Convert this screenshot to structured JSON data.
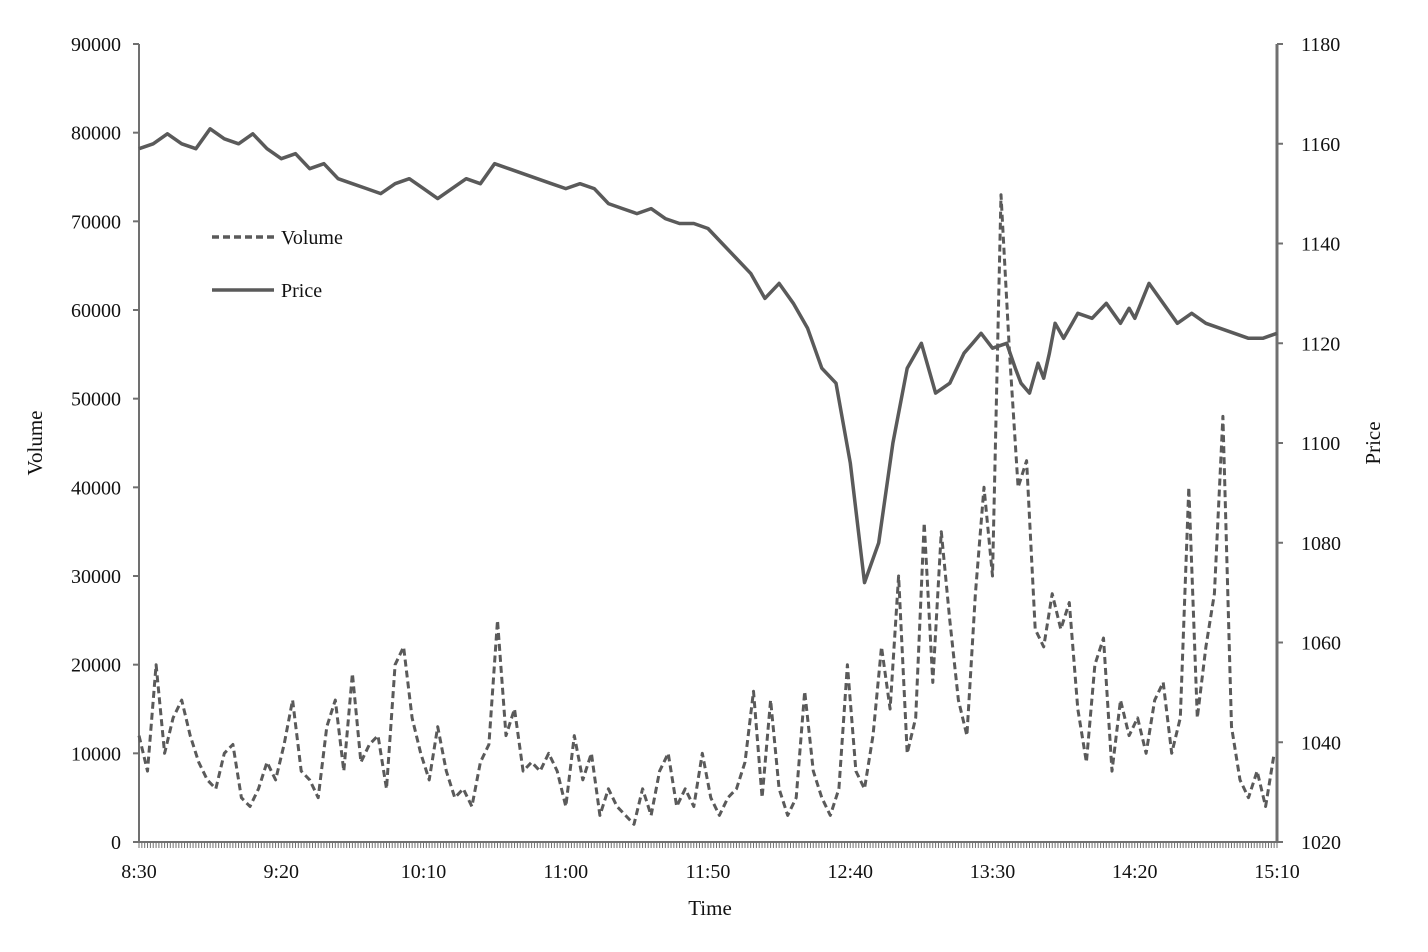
{
  "chart_data": {
    "type": "line",
    "xlabel": "Time",
    "ylabel_left": "Volume",
    "ylabel_right": "Price",
    "x_tick_labels": [
      "8:30",
      "9:20",
      "10:10",
      "11:00",
      "11:50",
      "12:40",
      "13:30",
      "14:20",
      "15:10"
    ],
    "x_range_minutes": [
      510,
      910
    ],
    "left_axis": {
      "range": [
        0,
        90000
      ],
      "ticks": [
        0,
        10000,
        20000,
        30000,
        40000,
        50000,
        60000,
        70000,
        80000,
        90000
      ]
    },
    "right_axis": {
      "range": [
        1020,
        1180
      ],
      "ticks": [
        1020,
        1040,
        1060,
        1080,
        1100,
        1120,
        1140,
        1160,
        1180
      ]
    },
    "legend": {
      "placement": "upper-left",
      "entries": [
        "Volume",
        "Price"
      ]
    },
    "colors": {
      "line": "#5a5a5a",
      "axis": "#707070"
    },
    "series": [
      {
        "name": "Price",
        "axis": "right",
        "style": "solid",
        "x_minutes": [
          510,
          515,
          520,
          525,
          530,
          535,
          540,
          545,
          550,
          555,
          560,
          565,
          570,
          575,
          580,
          585,
          590,
          595,
          600,
          605,
          610,
          615,
          620,
          625,
          630,
          635,
          640,
          645,
          650,
          655,
          660,
          665,
          670,
          675,
          680,
          685,
          690,
          695,
          700,
          705,
          710,
          715,
          720,
          725,
          730,
          735,
          740,
          745,
          750,
          755,
          760,
          765,
          770,
          775,
          780,
          785,
          790,
          795,
          800,
          803,
          806,
          810,
          815,
          818,
          820,
          823,
          826,
          828,
          830,
          832,
          835,
          838,
          840,
          845,
          850,
          855,
          858,
          860,
          865,
          870,
          875,
          880,
          885,
          890,
          895,
          900,
          905,
          910
        ],
        "values": [
          1159,
          1160,
          1162,
          1160,
          1159,
          1163,
          1161,
          1160,
          1162,
          1159,
          1157,
          1158,
          1155,
          1156,
          1153,
          1152,
          1151,
          1150,
          1152,
          1153,
          1151,
          1149,
          1151,
          1153,
          1152,
          1156,
          1155,
          1154,
          1153,
          1152,
          1151,
          1152,
          1151,
          1148,
          1147,
          1146,
          1147,
          1145,
          1144,
          1144,
          1143,
          1140,
          1137,
          1134,
          1129,
          1132,
          1128,
          1123,
          1115,
          1112,
          1096,
          1072,
          1080,
          1100,
          1115,
          1120,
          1110,
          1112,
          1118,
          1120,
          1122,
          1119,
          1120,
          1115,
          1112,
          1110,
          1116,
          1113,
          1118,
          1124,
          1121,
          1124,
          1126,
          1125,
          1128,
          1124,
          1127,
          1125,
          1132,
          1128,
          1124,
          1126,
          1124,
          1123,
          1122,
          1121,
          1121,
          1122
        ]
      },
      {
        "name": "Volume",
        "axis": "left",
        "style": "dashed",
        "x_minutes": [
          510,
          513,
          516,
          519,
          522,
          525,
          528,
          531,
          534,
          537,
          540,
          543,
          546,
          549,
          552,
          555,
          558,
          561,
          564,
          567,
          570,
          573,
          576,
          579,
          582,
          585,
          588,
          591,
          594,
          597,
          600,
          603,
          606,
          609,
          612,
          615,
          618,
          621,
          624,
          627,
          630,
          633,
          636,
          639,
          642,
          645,
          648,
          651,
          654,
          657,
          660,
          663,
          666,
          669,
          672,
          675,
          678,
          681,
          684,
          687,
          690,
          693,
          696,
          699,
          702,
          705,
          708,
          711,
          714,
          717,
          720,
          723,
          726,
          729,
          732,
          735,
          738,
          741,
          744,
          747,
          750,
          753,
          756,
          759,
          762,
          765,
          768,
          771,
          774,
          777,
          780,
          783,
          786,
          789,
          792,
          795,
          798,
          801,
          804,
          807,
          810,
          813,
          816,
          819,
          822,
          825,
          828,
          831,
          834,
          837,
          840,
          843,
          846,
          849,
          852,
          855,
          858,
          861,
          864,
          867,
          870,
          873,
          876,
          879,
          882,
          885,
          888,
          891,
          894,
          897,
          900,
          903,
          906,
          909
        ],
        "values": [
          12000,
          8000,
          20000,
          10000,
          14000,
          16000,
          12000,
          9000,
          7000,
          6000,
          10000,
          11000,
          5000,
          4000,
          6000,
          9000,
          7000,
          11000,
          16000,
          8000,
          7000,
          5000,
          13000,
          16000,
          8000,
          19000,
          9000,
          11000,
          12000,
          6000,
          20000,
          22000,
          14000,
          10000,
          7000,
          13000,
          8000,
          5000,
          6000,
          4000,
          9000,
          11000,
          25000,
          12000,
          15000,
          8000,
          9000,
          8000,
          10000,
          8000,
          4000,
          12000,
          7000,
          10000,
          3000,
          6000,
          4000,
          3000,
          2000,
          6000,
          3000,
          8000,
          10000,
          4000,
          6000,
          4000,
          10000,
          5000,
          3000,
          5000,
          6000,
          9000,
          17000,
          5000,
          16000,
          6000,
          3000,
          5000,
          17000,
          8000,
          5000,
          3000,
          6000,
          20000,
          8000,
          6000,
          12000,
          22000,
          15000,
          30000,
          10000,
          14000,
          36000,
          18000,
          35000,
          25000,
          16000,
          12000,
          28000,
          40000,
          30000,
          73000,
          55000,
          40000,
          43000,
          24000,
          22000,
          28000,
          24000,
          27000,
          15000,
          9000,
          20000,
          23000,
          8000,
          16000,
          12000,
          14000,
          10000,
          16000,
          18000,
          10000,
          14000,
          40000,
          14000,
          22000,
          28000,
          48000,
          13000,
          7000,
          5000,
          8000,
          4000,
          10000
        ]
      }
    ]
  }
}
